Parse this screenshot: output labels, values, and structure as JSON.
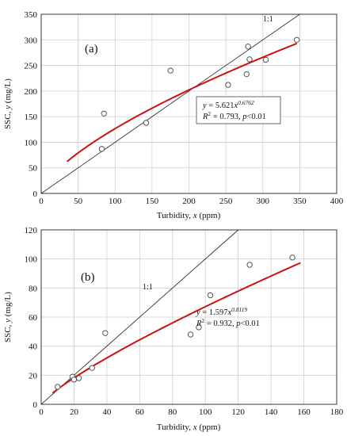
{
  "colors": {
    "fit_curve": "#cc1111",
    "one_to_one": "#333333",
    "grid": "#cfcfcf",
    "points": "#555555"
  },
  "chart_data": [
    {
      "type": "scatter",
      "panel_label": "(a)",
      "xlabel_main": "Turbidity, ",
      "xlabel_var": "x",
      "xlabel_unit": " (ppm)",
      "ylabel_main": "SSC, ",
      "ylabel_var": "y",
      "ylabel_unit": " (mg/L)",
      "xlim": [
        0,
        400
      ],
      "ylim": [
        0,
        350
      ],
      "xticks": [
        0,
        50,
        100,
        150,
        200,
        250,
        300,
        350,
        400
      ],
      "yticks": [
        0,
        50,
        100,
        150,
        200,
        250,
        300,
        350
      ],
      "x_tick_labels": [
        "0",
        "50",
        "100",
        "150",
        "200",
        "250",
        "300",
        "350",
        "400"
      ],
      "y_tick_labels": [
        "0",
        "50",
        "100",
        "150",
        "200",
        "250",
        "300",
        "350"
      ],
      "grid": true,
      "points": [
        {
          "x": 82,
          "y": 87
        },
        {
          "x": 85,
          "y": 156
        },
        {
          "x": 142,
          "y": 138
        },
        {
          "x": 175,
          "y": 240
        },
        {
          "x": 253,
          "y": 212
        },
        {
          "x": 278,
          "y": 233
        },
        {
          "x": 280,
          "y": 287
        },
        {
          "x": 282,
          "y": 262
        },
        {
          "x": 304,
          "y": 261
        },
        {
          "x": 346,
          "y": 300
        }
      ],
      "fit": {
        "a": 5.621,
        "b": 0.6762,
        "x_range": [
          35,
          346
        ]
      },
      "one_to_one_label": "1:1",
      "annotation": {
        "eq_prefix": "y",
        "eq_body": " = 5.621",
        "eq_x": "x",
        "eq_exp": "0.6762",
        "r2_label": "R",
        "r2_sup": "2",
        "r2_value": " = 0.793, ",
        "p_label": "p",
        "p_value": "<0.01"
      }
    },
    {
      "type": "scatter",
      "panel_label": "(b)",
      "xlabel_main": "Turbidity, ",
      "xlabel_var": "x",
      "xlabel_unit": " (ppm)",
      "ylabel_main": "SSC, ",
      "ylabel_var": "y",
      "ylabel_unit": " (mg/L)",
      "xlim": [
        0,
        180
      ],
      "ylim": [
        0,
        120
      ],
      "xticks": [
        0,
        20,
        40,
        60,
        80,
        100,
        120,
        140,
        160,
        180
      ],
      "yticks": [
        0,
        20,
        40,
        60,
        80,
        100,
        120
      ],
      "x_tick_labels": [
        "0",
        "20",
        "40",
        "60",
        "80",
        "100",
        "120",
        "140",
        "160",
        "180"
      ],
      "y_tick_labels": [
        "0",
        "20",
        "40",
        "60",
        "80",
        "100",
        "120"
      ],
      "grid": true,
      "points": [
        {
          "x": 10,
          "y": 12
        },
        {
          "x": 19,
          "y": 19
        },
        {
          "x": 20,
          "y": 17
        },
        {
          "x": 23,
          "y": 18
        },
        {
          "x": 31,
          "y": 25
        },
        {
          "x": 39,
          "y": 49
        },
        {
          "x": 91,
          "y": 48
        },
        {
          "x": 96,
          "y": 53
        },
        {
          "x": 103,
          "y": 75
        },
        {
          "x": 127,
          "y": 96
        },
        {
          "x": 153,
          "y": 101
        }
      ],
      "fit": {
        "a": 1.597,
        "b": 0.8119,
        "x_range": [
          7,
          158
        ]
      },
      "one_to_one_label": "1:1",
      "annotation": {
        "eq_prefix": "y",
        "eq_body": " = 1.597",
        "eq_x": "x",
        "eq_exp": "0.8119",
        "r2_label": "R",
        "r2_sup": "2",
        "r2_value": " = 0.932, ",
        "p_label": "p",
        "p_value": "<0.01"
      }
    }
  ]
}
